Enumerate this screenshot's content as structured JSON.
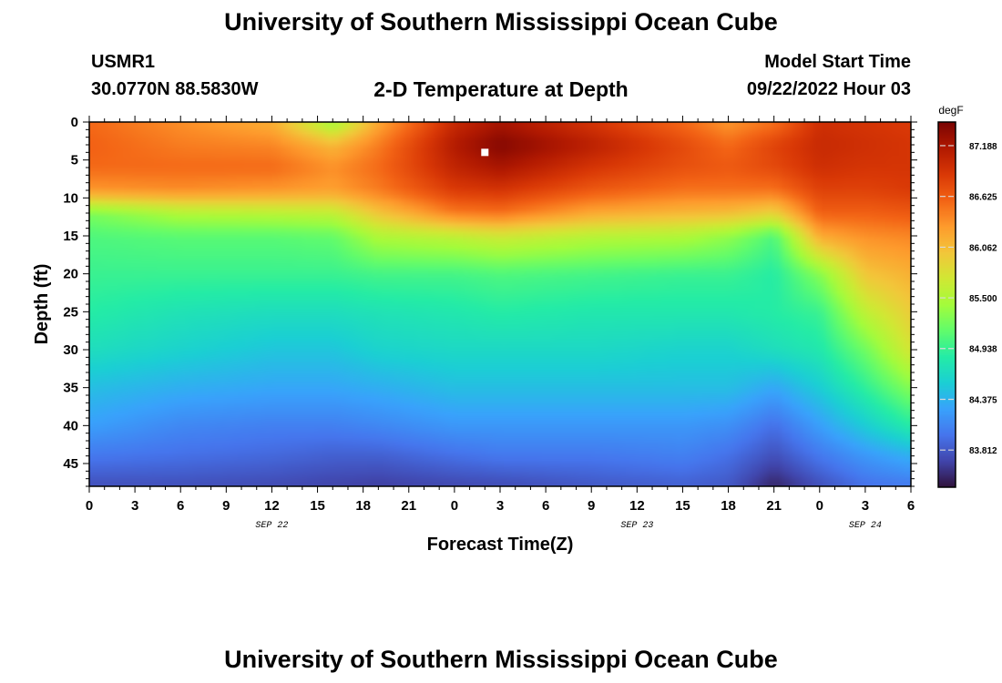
{
  "header": {
    "title": "University of Southern Mississippi Ocean Cube",
    "station": "USMR1",
    "coords": "30.0770N  88.5830W",
    "chart_title": "2-D Temperature at Depth",
    "model_start_label": "Model Start Time",
    "model_start_value": "09/22/2022 Hour 03"
  },
  "footer": {
    "title": "University of Southern Mississippi Ocean Cube"
  },
  "colors": {
    "background": "#ffffff",
    "colormap": [
      "#30123b",
      "#4145ab",
      "#4675ed",
      "#39a2fc",
      "#1bcfd4",
      "#24eca6",
      "#61fc6c",
      "#a4fc3b",
      "#d1e834",
      "#f3c63a",
      "#fe9b2d",
      "#f36315",
      "#d93806",
      "#b11901",
      "#7a0402"
    ]
  },
  "chart_data": {
    "type": "heatmap",
    "title": "2-D Temperature at Depth",
    "xlabel": "Forecast Time(Z)",
    "ylabel": "Depth (ft)",
    "x_tick_labels": [
      "0",
      "3",
      "6",
      "9",
      "12",
      "15",
      "18",
      "21",
      "0",
      "3",
      "6",
      "9",
      "12",
      "15",
      "18",
      "21",
      "0",
      "3",
      "6"
    ],
    "x_hours_range": [
      0,
      54
    ],
    "date_labels": [
      {
        "label": "SEP 22",
        "hour": 12
      },
      {
        "label": "SEP 23",
        "hour": 36
      },
      {
        "label": "SEP 24",
        "hour": 51
      }
    ],
    "y_tick_labels": [
      "0",
      "5",
      "10",
      "15",
      "20",
      "25",
      "30",
      "35",
      "40",
      "45"
    ],
    "y_range": [
      0,
      48
    ],
    "colorbar_unit": "degF",
    "colorbar_ticks": [
      "87.188",
      "86.625",
      "86.062",
      "85.500",
      "84.938",
      "84.375",
      "83.812"
    ],
    "colorbar_tick_values": [
      87.188,
      86.625,
      86.062,
      85.5,
      84.938,
      84.375,
      83.812
    ],
    "value_range": [
      83.4,
      87.45
    ],
    "marker": {
      "hour": 26,
      "depth": 4
    },
    "temperature_profiles": {
      "depths_ft": [
        0,
        3,
        6,
        9,
        12,
        15,
        20,
        25,
        30,
        35,
        40,
        44,
        48
      ],
      "profiles": [
        {
          "hour": 0,
          "temps": [
            86.55,
            86.6,
            86.55,
            86.3,
            85.25,
            85.05,
            84.95,
            84.85,
            84.7,
            84.45,
            84.25,
            84.0,
            83.75
          ]
        },
        {
          "hour": 6,
          "temps": [
            86.35,
            86.45,
            86.55,
            86.35,
            85.5,
            85.1,
            84.95,
            84.75,
            84.6,
            84.35,
            84.1,
            83.95,
            83.75
          ]
        },
        {
          "hour": 12,
          "temps": [
            86.15,
            86.4,
            86.55,
            86.3,
            85.55,
            85.1,
            84.95,
            84.7,
            84.5,
            84.3,
            84.05,
            83.9,
            83.72
          ]
        },
        {
          "hour": 16,
          "temps": [
            85.4,
            86.1,
            86.35,
            86.25,
            85.6,
            85.15,
            84.95,
            84.7,
            84.5,
            84.3,
            84.05,
            83.85,
            83.68
          ]
        },
        {
          "hour": 19,
          "temps": [
            86.2,
            86.45,
            86.55,
            86.45,
            86.0,
            85.5,
            85.0,
            84.75,
            84.6,
            84.35,
            84.1,
            83.85,
            83.65
          ]
        },
        {
          "hour": 24,
          "temps": [
            87.0,
            87.15,
            87.05,
            86.85,
            86.45,
            85.6,
            85.0,
            84.8,
            84.65,
            84.45,
            84.2,
            83.95,
            83.7
          ]
        },
        {
          "hour": 27,
          "temps": [
            87.2,
            87.4,
            87.2,
            86.9,
            86.5,
            85.7,
            85.05,
            84.85,
            84.65,
            84.45,
            84.2,
            84.0,
            83.72
          ]
        },
        {
          "hour": 33,
          "temps": [
            86.9,
            87.1,
            86.9,
            86.65,
            86.2,
            85.55,
            85.0,
            84.8,
            84.65,
            84.45,
            84.2,
            84.0,
            83.8
          ]
        },
        {
          "hour": 39,
          "temps": [
            86.55,
            86.75,
            86.7,
            86.5,
            86.1,
            85.5,
            84.95,
            84.8,
            84.6,
            84.45,
            84.2,
            84.05,
            83.85
          ]
        },
        {
          "hour": 42,
          "temps": [
            86.3,
            86.55,
            86.65,
            86.5,
            86.05,
            85.35,
            84.95,
            84.8,
            84.6,
            84.45,
            84.15,
            83.95,
            83.8
          ]
        },
        {
          "hour": 45,
          "temps": [
            86.5,
            86.8,
            86.75,
            86.5,
            85.9,
            85.05,
            84.85,
            84.85,
            84.7,
            84.3,
            83.95,
            83.75,
            83.5
          ]
        },
        {
          "hour": 48,
          "temps": [
            86.95,
            87.0,
            86.95,
            86.8,
            86.6,
            86.2,
            85.3,
            84.95,
            84.8,
            84.55,
            84.25,
            84.0,
            83.75
          ]
        },
        {
          "hour": 51,
          "temps": [
            86.9,
            86.95,
            86.9,
            86.8,
            86.6,
            86.35,
            86.0,
            85.6,
            85.2,
            84.9,
            84.55,
            84.2,
            83.95
          ]
        },
        {
          "hour": 54,
          "temps": [
            86.85,
            86.9,
            86.9,
            86.85,
            86.65,
            86.4,
            86.15,
            85.95,
            85.75,
            85.3,
            84.85,
            84.35,
            84.0
          ]
        }
      ]
    }
  }
}
